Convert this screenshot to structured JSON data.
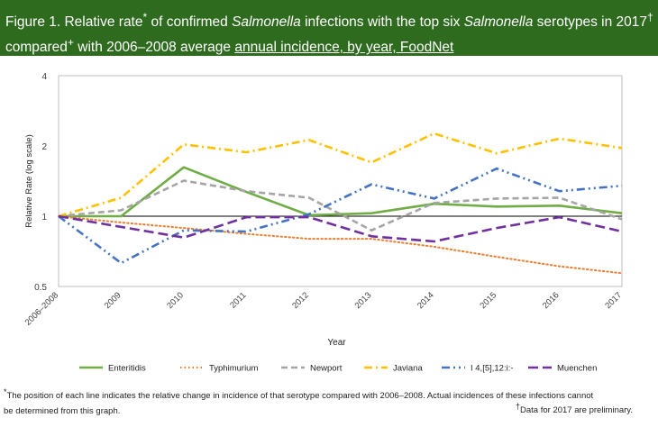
{
  "title": {
    "line1_a": "Figure 1. Relative rate",
    "line1_b": " of confirmed ",
    "line1_c": "Salmonella",
    "line1_d": " infections with the top six ",
    "line1_e": "Salmonella",
    "line1_f": " serotypes in 2017",
    "line2_a": "compared",
    "line2_b": " with 2006–2008 average ",
    "line2_c": "annual incidence, by year, FoodNet",
    "mark_star": "*",
    "mark_dagger": "†",
    "mark_plus": "+"
  },
  "footnotes": {
    "star_mark": "*",
    "star_text_1": "The position of each line indicates the relative change in incidence of that serotype compared with 2006–2008. Actual incidences of these infections cannot",
    "star_text_2": "be determined  from this graph.",
    "dagger_mark": "†",
    "dagger_text": "Data for 2017 are preliminary."
  },
  "chart_data": {
    "type": "line",
    "xlabel": "Year",
    "ylabel": "Relative Rate (log scale)",
    "ylim": [
      0.5,
      4
    ],
    "y_scale": "log2",
    "y_ticks": [
      "0.5",
      "1",
      "2",
      "4"
    ],
    "reference_line": 1,
    "legend_position": "bottom",
    "categories": [
      "2006–2008",
      "2009",
      "2010",
      "2011",
      "2012",
      "2013",
      "2014",
      "2015",
      "2016",
      "2017"
    ],
    "series": [
      {
        "name": "Enteritidis",
        "color": "#70ad47",
        "dash": "solid",
        "values": [
          1.0,
          1.0,
          1.62,
          1.27,
          1.01,
          1.03,
          1.13,
          1.1,
          1.11,
          1.03
        ]
      },
      {
        "name": "Typhimurium",
        "color": "#ed7d31",
        "dash": "dot",
        "values": [
          1.0,
          0.94,
          0.89,
          0.84,
          0.8,
          0.8,
          0.74,
          0.67,
          0.61,
          0.57
        ]
      },
      {
        "name": "Newport",
        "color": "#a5a5a5",
        "dash": "dash",
        "values": [
          1.0,
          1.06,
          1.42,
          1.28,
          1.2,
          0.87,
          1.14,
          1.19,
          1.2,
          0.97
        ]
      },
      {
        "name": "Javiana",
        "color": "#ffc000",
        "dash": "dashdot",
        "values": [
          1.0,
          1.2,
          2.03,
          1.88,
          2.12,
          1.7,
          2.26,
          1.86,
          2.15,
          1.96
        ]
      },
      {
        "name": "I 4,[5],12:i:-",
        "color": "#4472c4",
        "dash": "dashdotdot",
        "values": [
          1.0,
          0.63,
          0.87,
          0.86,
          1.02,
          1.37,
          1.19,
          1.6,
          1.28,
          1.35
        ]
      },
      {
        "name": "Muenchen",
        "color": "#7030a0",
        "dash": "longdash",
        "values": [
          1.0,
          0.9,
          0.81,
          0.99,
          0.99,
          0.82,
          0.78,
          0.89,
          0.99,
          0.86
        ]
      }
    ]
  }
}
